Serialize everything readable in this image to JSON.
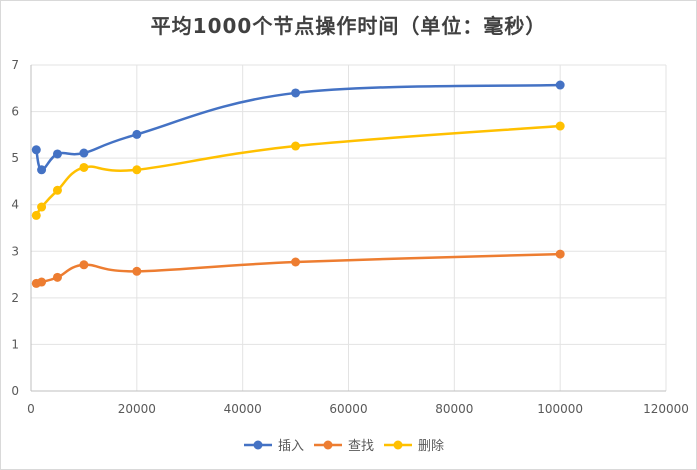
{
  "chart_data": {
    "type": "line",
    "title": "平均1000个节点操作时间（单位：毫秒）",
    "xlabel": "",
    "ylabel": "",
    "xlim": [
      0,
      120000
    ],
    "ylim": [
      0,
      7
    ],
    "x_ticks": [
      0,
      20000,
      40000,
      60000,
      80000,
      100000,
      120000
    ],
    "y_ticks": [
      0,
      1,
      2,
      3,
      4,
      5,
      6,
      7
    ],
    "x_tick_labels": [
      "0",
      "20000",
      "40000",
      "60000",
      "80000",
      "100000",
      "120000"
    ],
    "y_tick_labels": [
      "0",
      "1",
      "2",
      "3",
      "4",
      "5",
      "6",
      "7"
    ],
    "grid": true,
    "legend_position": "bottom",
    "x": [
      1000,
      2000,
      5000,
      10000,
      20000,
      50000,
      100000
    ],
    "series": [
      {
        "name": "插入",
        "color": "#4472c4",
        "values": [
          5.18,
          4.75,
          5.09,
          5.11,
          5.51,
          6.4,
          6.57
        ]
      },
      {
        "name": "查找",
        "color": "#ed7d31",
        "values": [
          2.31,
          2.34,
          2.44,
          2.71,
          2.57,
          2.77,
          2.94
        ]
      },
      {
        "name": "删除",
        "color": "#ffc000",
        "values": [
          3.77,
          3.95,
          4.31,
          4.8,
          4.75,
          5.26,
          5.69
        ]
      }
    ]
  }
}
